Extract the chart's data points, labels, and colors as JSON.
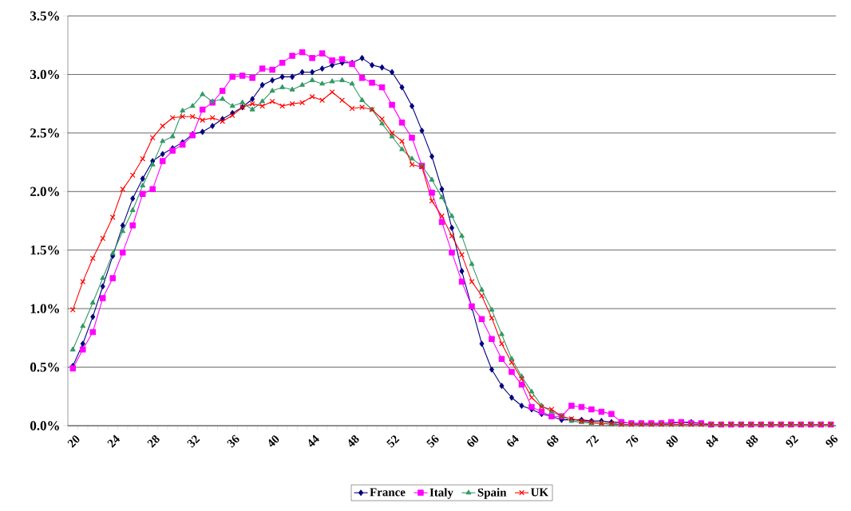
{
  "chart_data": {
    "type": "line",
    "categories": [
      "20",
      null,
      null,
      null,
      "24",
      null,
      null,
      null,
      "28",
      null,
      null,
      null,
      "32",
      null,
      null,
      null,
      "36",
      null,
      null,
      null,
      "40",
      null,
      null,
      null,
      "44",
      null,
      null,
      null,
      "48",
      null,
      null,
      null,
      "52",
      null,
      null,
      null,
      "56",
      null,
      null,
      null,
      "60",
      null,
      null,
      null,
      "64",
      null,
      null,
      null,
      "68",
      null,
      null,
      null,
      "72",
      null,
      null,
      null,
      "76",
      null,
      null,
      null,
      "80",
      null,
      null,
      null,
      "84",
      null,
      null,
      null,
      "88",
      null,
      null,
      null,
      "92",
      null,
      null,
      null,
      "96"
    ],
    "series": [
      {
        "name": "France",
        "color": "#000080",
        "marker": "diamond",
        "values": [
          0.51,
          0.7,
          0.93,
          1.19,
          1.45,
          1.71,
          1.94,
          2.11,
          2.26,
          2.32,
          2.37,
          2.42,
          2.49,
          2.51,
          2.56,
          2.62,
          2.67,
          2.72,
          2.79,
          2.91,
          2.95,
          2.98,
          2.98,
          3.02,
          3.02,
          3.05,
          3.08,
          3.1,
          3.1,
          3.14,
          3.08,
          3.06,
          3.02,
          2.89,
          2.73,
          2.52,
          2.3,
          2.02,
          1.69,
          1.32,
          1.01,
          0.7,
          0.48,
          0.34,
          0.24,
          0.17,
          0.14,
          0.1,
          0.08,
          0.05,
          0.05,
          0.05,
          0.04,
          0.04,
          0.03,
          0.03,
          0.02,
          0.02,
          0.02,
          0.02,
          0.02,
          0.03,
          0.03,
          0.02,
          0.01,
          null,
          null,
          null,
          null,
          null,
          null,
          null,
          null,
          null,
          null,
          null,
          null
        ]
      },
      {
        "name": "Italy",
        "color": "#ff00ff",
        "marker": "square",
        "values": [
          0.49,
          0.65,
          0.8,
          1.09,
          1.26,
          1.48,
          1.71,
          1.98,
          2.02,
          2.26,
          2.35,
          2.4,
          2.48,
          2.7,
          2.76,
          2.86,
          2.98,
          2.99,
          2.97,
          3.05,
          3.04,
          3.1,
          3.16,
          3.19,
          3.14,
          3.18,
          3.12,
          3.13,
          3.09,
          2.97,
          2.93,
          2.89,
          2.74,
          2.59,
          2.46,
          2.22,
          1.99,
          1.74,
          1.48,
          1.23,
          1.02,
          0.91,
          0.74,
          0.57,
          0.46,
          0.35,
          0.16,
          0.12,
          0.08,
          0.08,
          0.17,
          0.16,
          0.14,
          0.12,
          0.1,
          0.03,
          0.02,
          0.02,
          0.02,
          0.02,
          0.03,
          0.03,
          0.02,
          0.02,
          0.01,
          0.01,
          0.01,
          0.01,
          0.01,
          0.01,
          0.01,
          0.01,
          0.01,
          0.01,
          0.01,
          0.01,
          0.01
        ]
      },
      {
        "name": "Spain",
        "color": "#339966",
        "marker": "triangle",
        "values": [
          0.65,
          0.85,
          1.05,
          1.26,
          1.47,
          1.66,
          1.84,
          2.05,
          2.23,
          2.43,
          2.47,
          2.69,
          2.73,
          2.83,
          2.77,
          2.79,
          2.73,
          2.76,
          2.7,
          2.77,
          2.86,
          2.89,
          2.87,
          2.91,
          2.95,
          2.92,
          2.94,
          2.95,
          2.92,
          2.78,
          2.7,
          2.58,
          2.47,
          2.36,
          2.28,
          2.22,
          2.1,
          1.95,
          1.79,
          1.62,
          1.38,
          1.16,
          0.99,
          0.78,
          0.57,
          0.42,
          0.29,
          0.17,
          0.12,
          0.08,
          0.04,
          0.03,
          0.02,
          0.02,
          0.01,
          0.01,
          0.01,
          0.01,
          0.01,
          0.01,
          0.01,
          0.01,
          0.01,
          0.01,
          0.01,
          0.01,
          0.01,
          0.01,
          0.01,
          0.01,
          0.01,
          0.01,
          0.01,
          0.01,
          0.01,
          0.01,
          0.01
        ]
      },
      {
        "name": "UK",
        "color": "#ff0000",
        "marker": "cross",
        "values": [
          0.99,
          1.23,
          1.43,
          1.6,
          1.78,
          2.02,
          2.14,
          2.28,
          2.46,
          2.56,
          2.63,
          2.64,
          2.64,
          2.61,
          2.63,
          2.6,
          2.65,
          2.72,
          2.75,
          2.73,
          2.77,
          2.73,
          2.75,
          2.76,
          2.81,
          2.78,
          2.85,
          2.78,
          2.71,
          2.72,
          2.7,
          2.62,
          2.5,
          2.43,
          2.23,
          2.21,
          1.92,
          1.79,
          1.62,
          1.46,
          1.23,
          1.11,
          0.92,
          0.7,
          0.54,
          0.4,
          0.24,
          0.16,
          0.14,
          0.08,
          0.06,
          0.04,
          0.03,
          0.02,
          0.02,
          0.01,
          0.01,
          0.01,
          0.01,
          0.01,
          0.01,
          0.01,
          0.01,
          0.01,
          0.01,
          0.01,
          0.01,
          0.01,
          0.01,
          0.01,
          0.01,
          0.01,
          0.01,
          0.01,
          0.01,
          0.01,
          0.01
        ]
      }
    ],
    "ylim": [
      0,
      3.5
    ],
    "yticks": [
      {
        "value": 0,
        "label": "0.0%"
      },
      {
        "value": 0.5,
        "label": "0.5%"
      },
      {
        "value": 1,
        "label": "1.0%"
      },
      {
        "value": 1.5,
        "label": "1.5%"
      },
      {
        "value": 2,
        "label": "2.0%"
      },
      {
        "value": 2.5,
        "label": "2.5%"
      },
      {
        "value": 3,
        "label": "3.0%"
      },
      {
        "value": 3.5,
        "label": "3.5%"
      }
    ],
    "grid": "y",
    "legend": "bottom"
  }
}
